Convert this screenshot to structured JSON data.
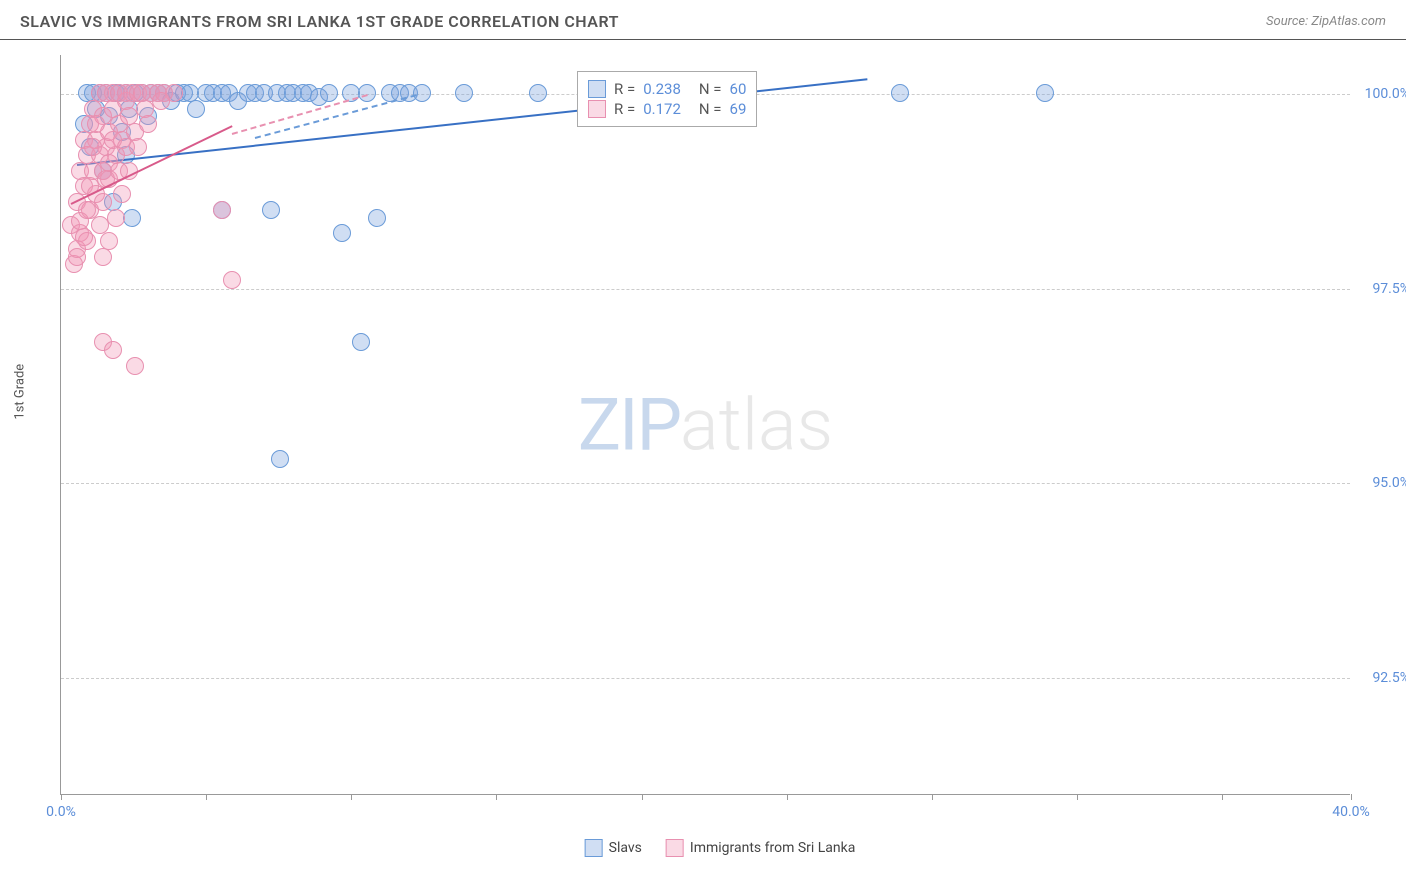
{
  "title": "SLAVIC VS IMMIGRANTS FROM SRI LANKA 1ST GRADE CORRELATION CHART",
  "source": "Source: ZipAtlas.com",
  "ylabel": "1st Grade",
  "watermark_zip": "ZIP",
  "watermark_atlas": "atlas",
  "chart": {
    "type": "scatter",
    "xlim": [
      0,
      40
    ],
    "ylim": [
      91,
      100.5
    ],
    "xticks": [
      0,
      4.5,
      9,
      13.5,
      18,
      22.5,
      27,
      31.5,
      36,
      40
    ],
    "xtick_labels": {
      "0": "0.0%",
      "40": "40.0%"
    },
    "yticks": [
      92.5,
      95.0,
      97.5,
      100.0
    ],
    "ytick_labels": [
      "92.5%",
      "95.0%",
      "97.5%",
      "100.0%"
    ],
    "background": "#ffffff",
    "grid_color": "#cccccc",
    "axis_color": "#999999"
  },
  "series": [
    {
      "name": "Slavs",
      "color_fill": "rgba(120,160,220,0.35)",
      "color_stroke": "#6a9bd8",
      "marker_radius": 9,
      "R": "0.238",
      "N": "60",
      "trend": {
        "x1": 0.5,
        "y1": 99.1,
        "x2": 25,
        "y2": 100.2,
        "color": "#3870c4",
        "dash_x1": 6,
        "dash_y1": 99.45,
        "dash_x2": 11,
        "dash_y2": 100
      },
      "points": [
        [
          0.7,
          99.6
        ],
        [
          0.8,
          100
        ],
        [
          0.9,
          99.3
        ],
        [
          1.0,
          100
        ],
        [
          1.1,
          99.8
        ],
        [
          1.2,
          100
        ],
        [
          1.3,
          99.0
        ],
        [
          1.4,
          100
        ],
        [
          1.5,
          99.7
        ],
        [
          1.6,
          98.6
        ],
        [
          1.7,
          100
        ],
        [
          1.8,
          100
        ],
        [
          1.9,
          99.5
        ],
        [
          2.0,
          100
        ],
        [
          2.1,
          99.8
        ],
        [
          2.2,
          98.4
        ],
        [
          2.3,
          100
        ],
        [
          2.5,
          100
        ],
        [
          2.7,
          99.7
        ],
        [
          2.8,
          100
        ],
        [
          3.0,
          100
        ],
        [
          3.2,
          100
        ],
        [
          3.4,
          99.9
        ],
        [
          3.6,
          100
        ],
        [
          3.8,
          100
        ],
        [
          4.0,
          100
        ],
        [
          4.2,
          99.8
        ],
        [
          4.5,
          100
        ],
        [
          4.7,
          100
        ],
        [
          5.0,
          100
        ],
        [
          5.2,
          100
        ],
        [
          5.5,
          99.9
        ],
        [
          5.8,
          100
        ],
        [
          6.0,
          100
        ],
        [
          6.3,
          100
        ],
        [
          6.5,
          98.5
        ],
        [
          6.7,
          100
        ],
        [
          7.0,
          100
        ],
        [
          7.2,
          100
        ],
        [
          7.5,
          100
        ],
        [
          7.7,
          100
        ],
        [
          8.0,
          99.95
        ],
        [
          8.3,
          100
        ],
        [
          8.7,
          98.2
        ],
        [
          9.0,
          100
        ],
        [
          9.3,
          96.8
        ],
        [
          9.5,
          100
        ],
        [
          9.8,
          98.4
        ],
        [
          10.2,
          100
        ],
        [
          10.5,
          100
        ],
        [
          10.8,
          100
        ],
        [
          11.2,
          100
        ],
        [
          12.5,
          100
        ],
        [
          14.8,
          100
        ],
        [
          17.0,
          100
        ],
        [
          6.8,
          95.3
        ],
        [
          26.0,
          100
        ],
        [
          30.5,
          100
        ],
        [
          5.0,
          98.5
        ],
        [
          2.0,
          99.2
        ]
      ]
    },
    {
      "name": "Immigrants from Sri Lanka",
      "color_fill": "rgba(240,150,180,0.35)",
      "color_stroke": "#e890b0",
      "marker_radius": 9,
      "R": "0.172",
      "N": "69",
      "trend": {
        "x1": 0.3,
        "y1": 98.6,
        "x2": 5.3,
        "y2": 99.6,
        "color": "#d85a8a",
        "dash_x1": 5.3,
        "dash_y1": 99.5,
        "dash_x2": 9.5,
        "dash_y2": 100
      },
      "points": [
        [
          0.3,
          98.3
        ],
        [
          0.4,
          97.8
        ],
        [
          0.5,
          98.0
        ],
        [
          0.5,
          98.6
        ],
        [
          0.6,
          98.2
        ],
        [
          0.6,
          99.0
        ],
        [
          0.7,
          98.8
        ],
        [
          0.7,
          99.4
        ],
        [
          0.8,
          98.1
        ],
        [
          0.8,
          99.2
        ],
        [
          0.9,
          98.5
        ],
        [
          0.9,
          99.6
        ],
        [
          1.0,
          99.0
        ],
        [
          1.0,
          99.8
        ],
        [
          1.1,
          98.7
        ],
        [
          1.1,
          99.4
        ],
        [
          1.2,
          99.2
        ],
        [
          1.2,
          100
        ],
        [
          1.3,
          99.0
        ],
        [
          1.3,
          99.7
        ],
        [
          1.4,
          99.3
        ],
        [
          1.4,
          100
        ],
        [
          1.5,
          99.5
        ],
        [
          1.5,
          98.9
        ],
        [
          1.6,
          99.8
        ],
        [
          1.6,
          100
        ],
        [
          1.7,
          99.2
        ],
        [
          1.8,
          99.6
        ],
        [
          1.8,
          100
        ],
        [
          1.9,
          99.4
        ],
        [
          2.0,
          99.9
        ],
        [
          2.0,
          100
        ],
        [
          2.1,
          99.7
        ],
        [
          2.2,
          100
        ],
        [
          2.3,
          99.5
        ],
        [
          2.4,
          100
        ],
        [
          2.5,
          100
        ],
        [
          2.6,
          99.8
        ],
        [
          2.8,
          100
        ],
        [
          3.0,
          100
        ],
        [
          3.2,
          100
        ],
        [
          3.5,
          100
        ],
        [
          0.5,
          97.9
        ],
        [
          0.6,
          98.35
        ],
        [
          0.7,
          98.15
        ],
        [
          0.8,
          98.5
        ],
        [
          0.9,
          98.8
        ],
        [
          1.0,
          99.3
        ],
        [
          1.1,
          99.6
        ],
        [
          1.2,
          98.3
        ],
        [
          1.3,
          98.6
        ],
        [
          1.4,
          98.9
        ],
        [
          1.5,
          99.1
        ],
        [
          1.6,
          99.4
        ],
        [
          1.8,
          99.0
        ],
        [
          2.0,
          99.3
        ],
        [
          1.3,
          96.8
        ],
        [
          1.6,
          96.7
        ],
        [
          2.3,
          96.5
        ],
        [
          5.3,
          97.6
        ],
        [
          5.0,
          98.5
        ],
        [
          1.3,
          97.9
        ],
        [
          1.5,
          98.1
        ],
        [
          1.7,
          98.4
        ],
        [
          1.9,
          98.7
        ],
        [
          2.1,
          99.0
        ],
        [
          2.4,
          99.3
        ],
        [
          2.7,
          99.6
        ],
        [
          3.1,
          99.9
        ]
      ]
    }
  ],
  "legend": {
    "r_label": "R =",
    "n_label": "N ="
  },
  "bottom_legend_slavs": "Slavs",
  "bottom_legend_srilanka": "Immigrants from Sri Lanka"
}
